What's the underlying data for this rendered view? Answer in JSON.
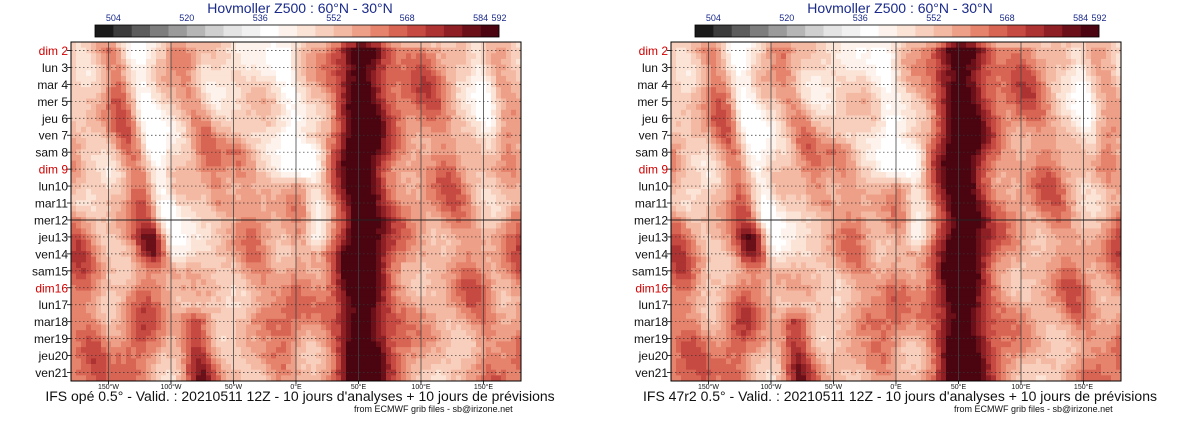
{
  "chart_data": [
    {
      "type": "heatmap",
      "title": "Hovmoller Z500 : 60°N - 30°N",
      "colorbar": {
        "ticks": [
          "504",
          "520",
          "536",
          "552",
          "568",
          "584",
          "592"
        ],
        "range": [
          500,
          592
        ],
        "step": 4,
        "colors": [
          "#1a1a1a",
          "#3b3b3b",
          "#5c5c5c",
          "#7d7d7d",
          "#9a9a9a",
          "#b5b5b5",
          "#cfcfcf",
          "#e4e4e4",
          "#f1f1f1",
          "#ffffff",
          "#fdf2ec",
          "#fbe3d6",
          "#f8cfbd",
          "#f4b9a3",
          "#ee9f87",
          "#e5836c",
          "#d86554",
          "#c64a41",
          "#ad3333",
          "#8e2025",
          "#6b0f18",
          "#4a0510"
        ]
      },
      "y_labels": [
        "dim 2",
        "lun 3",
        "mar 4",
        "mer 5",
        "jeu 6",
        "ven 7",
        "sam 8",
        "dim 9",
        "lun10",
        "mar11",
        "mer12",
        "jeu13",
        "ven14",
        "sam15",
        "dim16",
        "lun17",
        "mar18",
        "mer19",
        "jeu20",
        "ven21"
      ],
      "y_labels_red": [
        "dim 2",
        "dim 9",
        "dim16"
      ],
      "x_ticks": [
        "150°W",
        "100°W",
        "50°W",
        "0°E",
        "50°E",
        "100°E",
        "150°E"
      ],
      "analysis_forecast_split": "mer12",
      "caption": "IFS opé 0.5° - Valid. : 20210511 12Z - 10 jours d'analyses + 10 jours de prévisions",
      "credit": "from ECMWF grib files - sb@irizone.net",
      "seed": 11
    },
    {
      "type": "heatmap",
      "title": "Hovmoller Z500 : 60°N - 30°N",
      "colorbar": {
        "ticks": [
          "504",
          "520",
          "536",
          "552",
          "568",
          "584",
          "592"
        ],
        "range": [
          500,
          592
        ],
        "step": 4,
        "colors": [
          "#1a1a1a",
          "#3b3b3b",
          "#5c5c5c",
          "#7d7d7d",
          "#9a9a9a",
          "#b5b5b5",
          "#cfcfcf",
          "#e4e4e4",
          "#f1f1f1",
          "#ffffff",
          "#fdf2ec",
          "#fbe3d6",
          "#f8cfbd",
          "#f4b9a3",
          "#ee9f87",
          "#e5836c",
          "#d86554",
          "#c64a41",
          "#ad3333",
          "#8e2025",
          "#6b0f18",
          "#4a0510"
        ]
      },
      "y_labels": [
        "dim 2",
        "lun 3",
        "mar 4",
        "mer 5",
        "jeu 6",
        "ven 7",
        "sam 8",
        "dim 9",
        "lun10",
        "mar11",
        "mer12",
        "jeu13",
        "ven14",
        "sam15",
        "dim16",
        "lun17",
        "mar18",
        "mer19",
        "jeu20",
        "ven21"
      ],
      "y_labels_red": [
        "dim 2",
        "dim 9",
        "dim16"
      ],
      "x_ticks": [
        "150°W",
        "100°W",
        "50°W",
        "0°E",
        "50°E",
        "100°E",
        "150°E"
      ],
      "analysis_forecast_split": "mer12",
      "caption": "IFS 47r2 0.5° - Valid. : 20210511 12Z - 10 jours d'analyses + 10 jours de prévisions",
      "credit": "from ECMWF grib files - sb@irizone.net",
      "seed": 29
    }
  ]
}
